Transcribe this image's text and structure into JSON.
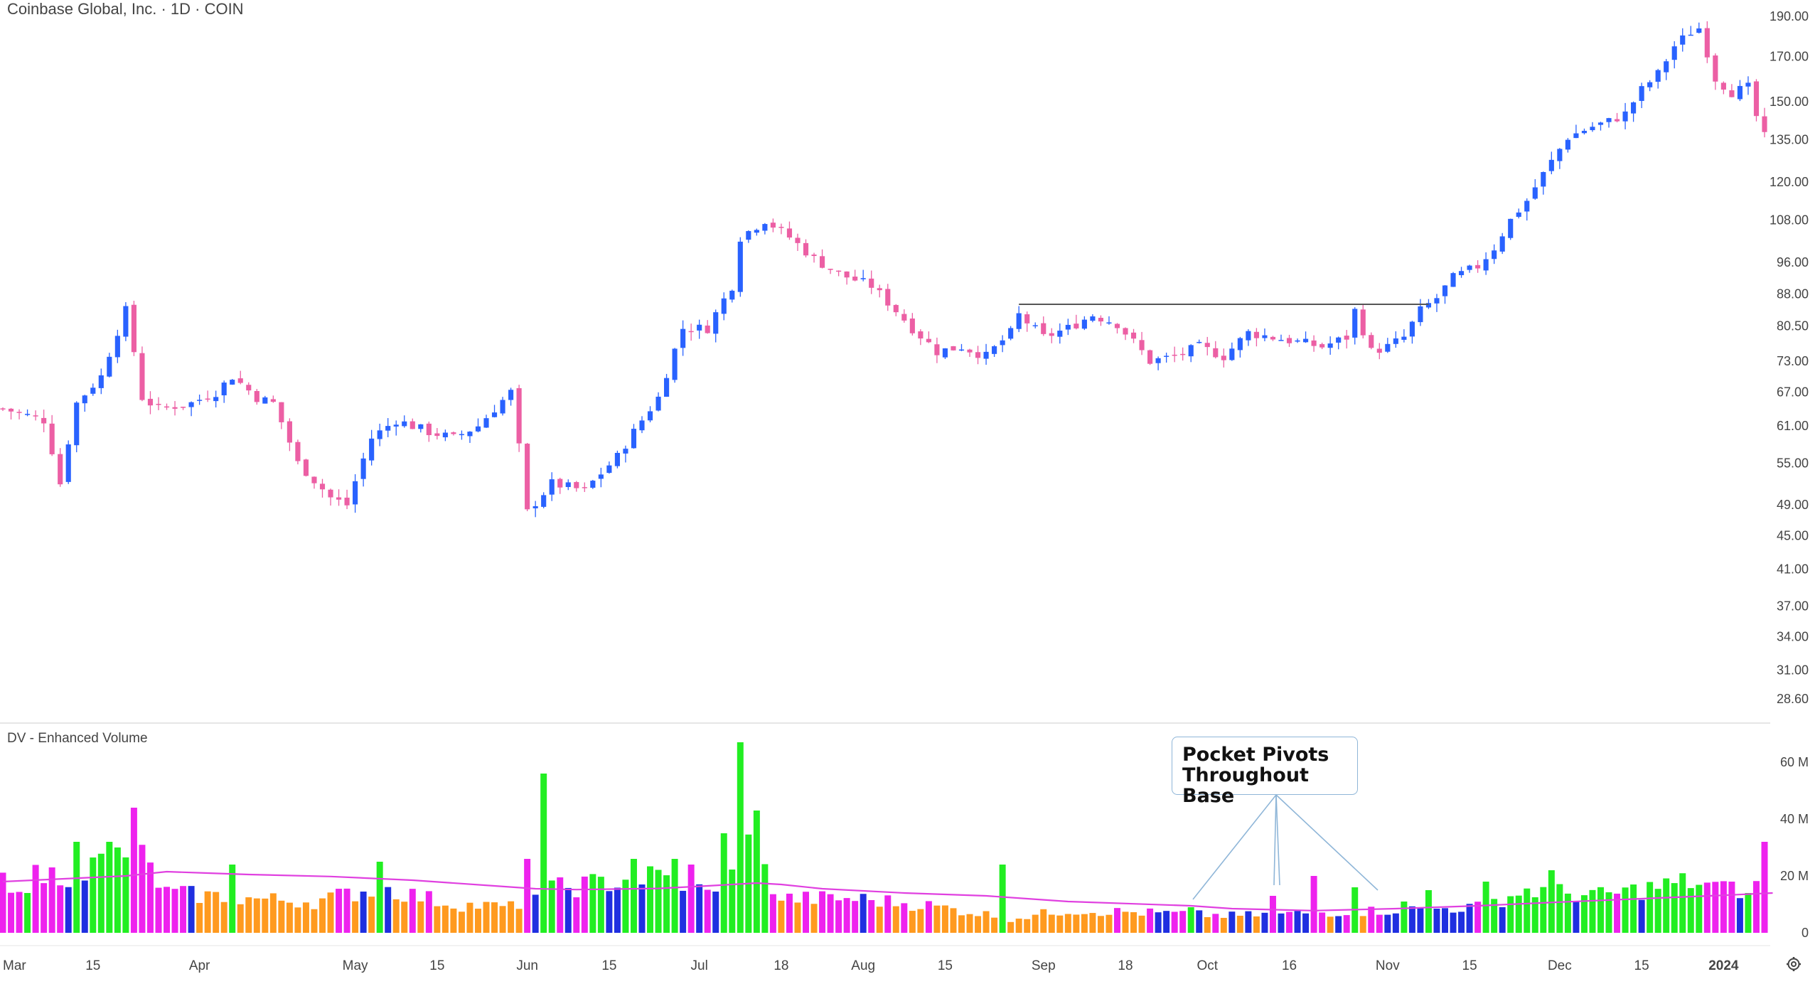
{
  "header": {
    "title": "Coinbase Global, Inc. · 1D · COIN"
  },
  "volume_panel": {
    "title": "DV - Enhanced Volume"
  },
  "annotation": {
    "line1": "Pocket Pivots",
    "line2": "Throughout Base"
  },
  "icons": {
    "settings": "gear-icon"
  },
  "colors": {
    "up_candle": "#2962ff",
    "down_candle": "#ec5fa4",
    "vol_blue": "#1f2fe0",
    "vol_magenta": "#ee22ee",
    "vol_green": "#22ee22",
    "vol_orange": "#ff9a1f",
    "avg_line": "#e040e0",
    "resistance": "#555555"
  },
  "chart_data": [
    {
      "type": "candlestick",
      "title": "Coinbase Global, Inc. · 1D · COIN",
      "scale": "log",
      "ylim": [
        27.5,
        195
      ],
      "y_ticks": [
        "190.00",
        "170.00",
        "150.00",
        "135.00",
        "120.00",
        "108.00",
        "96.00",
        "88.00",
        "80.50",
        "73.00",
        "67.00",
        "61.00",
        "55.00",
        "49.00",
        "45.00",
        "41.00",
        "37.00",
        "34.00",
        "31.00",
        "28.60"
      ],
      "x_ticks": [
        "Mar",
        "15",
        "Apr",
        "May",
        "15",
        "Jun",
        "15",
        "Jul",
        "18",
        "Aug",
        "15",
        "Sep",
        "18",
        "Oct",
        "16",
        "Nov",
        "15",
        "Dec",
        "15",
        "2024"
      ],
      "x_tick_bar_index": [
        0,
        11,
        24,
        43,
        53,
        64,
        74,
        85,
        95,
        105,
        115,
        127,
        137,
        147,
        157,
        169,
        179,
        190,
        200,
        210
      ],
      "resistance_line": {
        "price": 85.5,
        "from_bar": 124,
        "to_bar": 174
      },
      "anchors": [
        [
          0,
          64
        ],
        [
          5,
          62
        ],
        [
          7,
          52
        ],
        [
          9,
          65
        ],
        [
          12,
          70
        ],
        [
          15,
          84
        ],
        [
          17,
          66
        ],
        [
          19,
          64
        ],
        [
          23,
          65
        ],
        [
          26,
          67
        ],
        [
          28,
          70
        ],
        [
          31,
          66
        ],
        [
          33,
          65
        ],
        [
          36,
          55
        ],
        [
          40,
          50
        ],
        [
          42,
          49
        ],
        [
          45,
          59
        ],
        [
          48,
          62
        ],
        [
          52,
          60
        ],
        [
          55,
          59
        ],
        [
          58,
          61
        ],
        [
          62,
          67
        ],
        [
          64,
          48
        ],
        [
          67,
          52
        ],
        [
          71,
          51
        ],
        [
          75,
          56
        ],
        [
          77,
          60
        ],
        [
          80,
          66
        ],
        [
          83,
          80
        ],
        [
          86,
          80
        ],
        [
          89,
          90
        ],
        [
          90,
          103
        ],
        [
          93,
          108
        ],
        [
          96,
          103
        ],
        [
          99,
          97
        ],
        [
          102,
          93
        ],
        [
          106,
          90
        ],
        [
          109,
          84
        ],
        [
          111,
          80
        ],
        [
          114,
          75
        ],
        [
          117,
          76
        ],
        [
          120,
          74
        ],
        [
          123,
          79
        ],
        [
          124,
          83
        ],
        [
          127,
          78
        ],
        [
          130,
          80
        ],
        [
          133,
          83
        ],
        [
          136,
          81
        ],
        [
          138,
          77
        ],
        [
          140,
          73
        ],
        [
          143,
          74
        ],
        [
          146,
          76
        ],
        [
          149,
          74
        ],
        [
          152,
          79
        ],
        [
          155,
          78
        ],
        [
          158,
          77
        ],
        [
          161,
          76
        ],
        [
          164,
          78
        ],
        [
          165,
          84
        ],
        [
          167,
          75
        ],
        [
          169,
          76
        ],
        [
          171,
          78
        ],
        [
          173,
          84
        ],
        [
          175,
          87
        ],
        [
          177,
          92
        ],
        [
          180,
          95
        ],
        [
          182,
          100
        ],
        [
          184,
          108
        ],
        [
          186,
          114
        ],
        [
          189,
          127
        ],
        [
          191,
          136
        ],
        [
          194,
          140
        ],
        [
          196,
          142
        ],
        [
          198,
          145
        ],
        [
          200,
          155
        ],
        [
          202,
          162
        ],
        [
          204,
          175
        ],
        [
          206,
          182
        ],
        [
          207,
          184
        ],
        [
          209,
          160
        ],
        [
          211,
          154
        ],
        [
          213,
          156
        ],
        [
          214,
          144
        ],
        [
          215,
          136
        ]
      ]
    },
    {
      "type": "bar",
      "title": "DV - Enhanced Volume",
      "ylim": [
        0,
        70
      ],
      "unit": "M",
      "y_ticks": [
        "60 M",
        "40 M",
        "20 M",
        "0"
      ],
      "bar_count": 216,
      "volume_anchors": [
        [
          0,
          18
        ],
        [
          10,
          22
        ],
        [
          16,
          30
        ],
        [
          20,
          14
        ],
        [
          30,
          12
        ],
        [
          38,
          11
        ],
        [
          46,
          16
        ],
        [
          55,
          10
        ],
        [
          62,
          9
        ],
        [
          66,
          15
        ],
        [
          80,
          20
        ],
        [
          87,
          13
        ],
        [
          90,
          35
        ],
        [
          95,
          12
        ],
        [
          104,
          12
        ],
        [
          112,
          10
        ],
        [
          119,
          7
        ],
        [
          123,
          5
        ],
        [
          130,
          8
        ],
        [
          140,
          7
        ],
        [
          150,
          6
        ],
        [
          160,
          7
        ],
        [
          170,
          8
        ],
        [
          180,
          9
        ],
        [
          186,
          15
        ],
        [
          195,
          13
        ],
        [
          206,
          18
        ],
        [
          210,
          15
        ],
        [
          215,
          16
        ]
      ],
      "spikes": [
        [
          3,
          14
        ],
        [
          9,
          32
        ],
        [
          13,
          32
        ],
        [
          16,
          44
        ],
        [
          28,
          24
        ],
        [
          46,
          25
        ],
        [
          64,
          26
        ],
        [
          66,
          56
        ],
        [
          77,
          26
        ],
        [
          82,
          26
        ],
        [
          84,
          24
        ],
        [
          88,
          35
        ],
        [
          90,
          67
        ],
        [
          92,
          43
        ],
        [
          122,
          24
        ],
        [
          145,
          9
        ],
        [
          155,
          13
        ],
        [
          160,
          20
        ],
        [
          165,
          16
        ],
        [
          171,
          11
        ],
        [
          174,
          15
        ],
        [
          181,
          18
        ],
        [
          189,
          22
        ],
        [
          211,
          18
        ],
        [
          213,
          14
        ],
        [
          215,
          32
        ]
      ],
      "moving_average": [
        [
          0,
          18
        ],
        [
          15,
          20
        ],
        [
          20,
          21.5
        ],
        [
          25,
          21
        ],
        [
          30,
          20.5
        ],
        [
          40,
          19.8
        ],
        [
          50,
          18.5
        ],
        [
          60,
          16.5
        ],
        [
          65,
          15.5
        ],
        [
          70,
          15.2
        ],
        [
          80,
          15.6
        ],
        [
          86,
          16.5
        ],
        [
          92,
          17.5
        ],
        [
          95,
          17
        ],
        [
          100,
          15.5
        ],
        [
          110,
          14
        ],
        [
          120,
          13
        ],
        [
          125,
          12
        ],
        [
          130,
          11
        ],
        [
          138,
          10.2
        ],
        [
          145,
          9.5
        ],
        [
          150,
          8.5
        ],
        [
          160,
          7.8
        ],
        [
          170,
          8.5
        ],
        [
          180,
          9.5
        ],
        [
          190,
          10.8
        ],
        [
          200,
          12
        ],
        [
          210,
          13.2
        ],
        [
          216,
          14
        ]
      ]
    }
  ]
}
